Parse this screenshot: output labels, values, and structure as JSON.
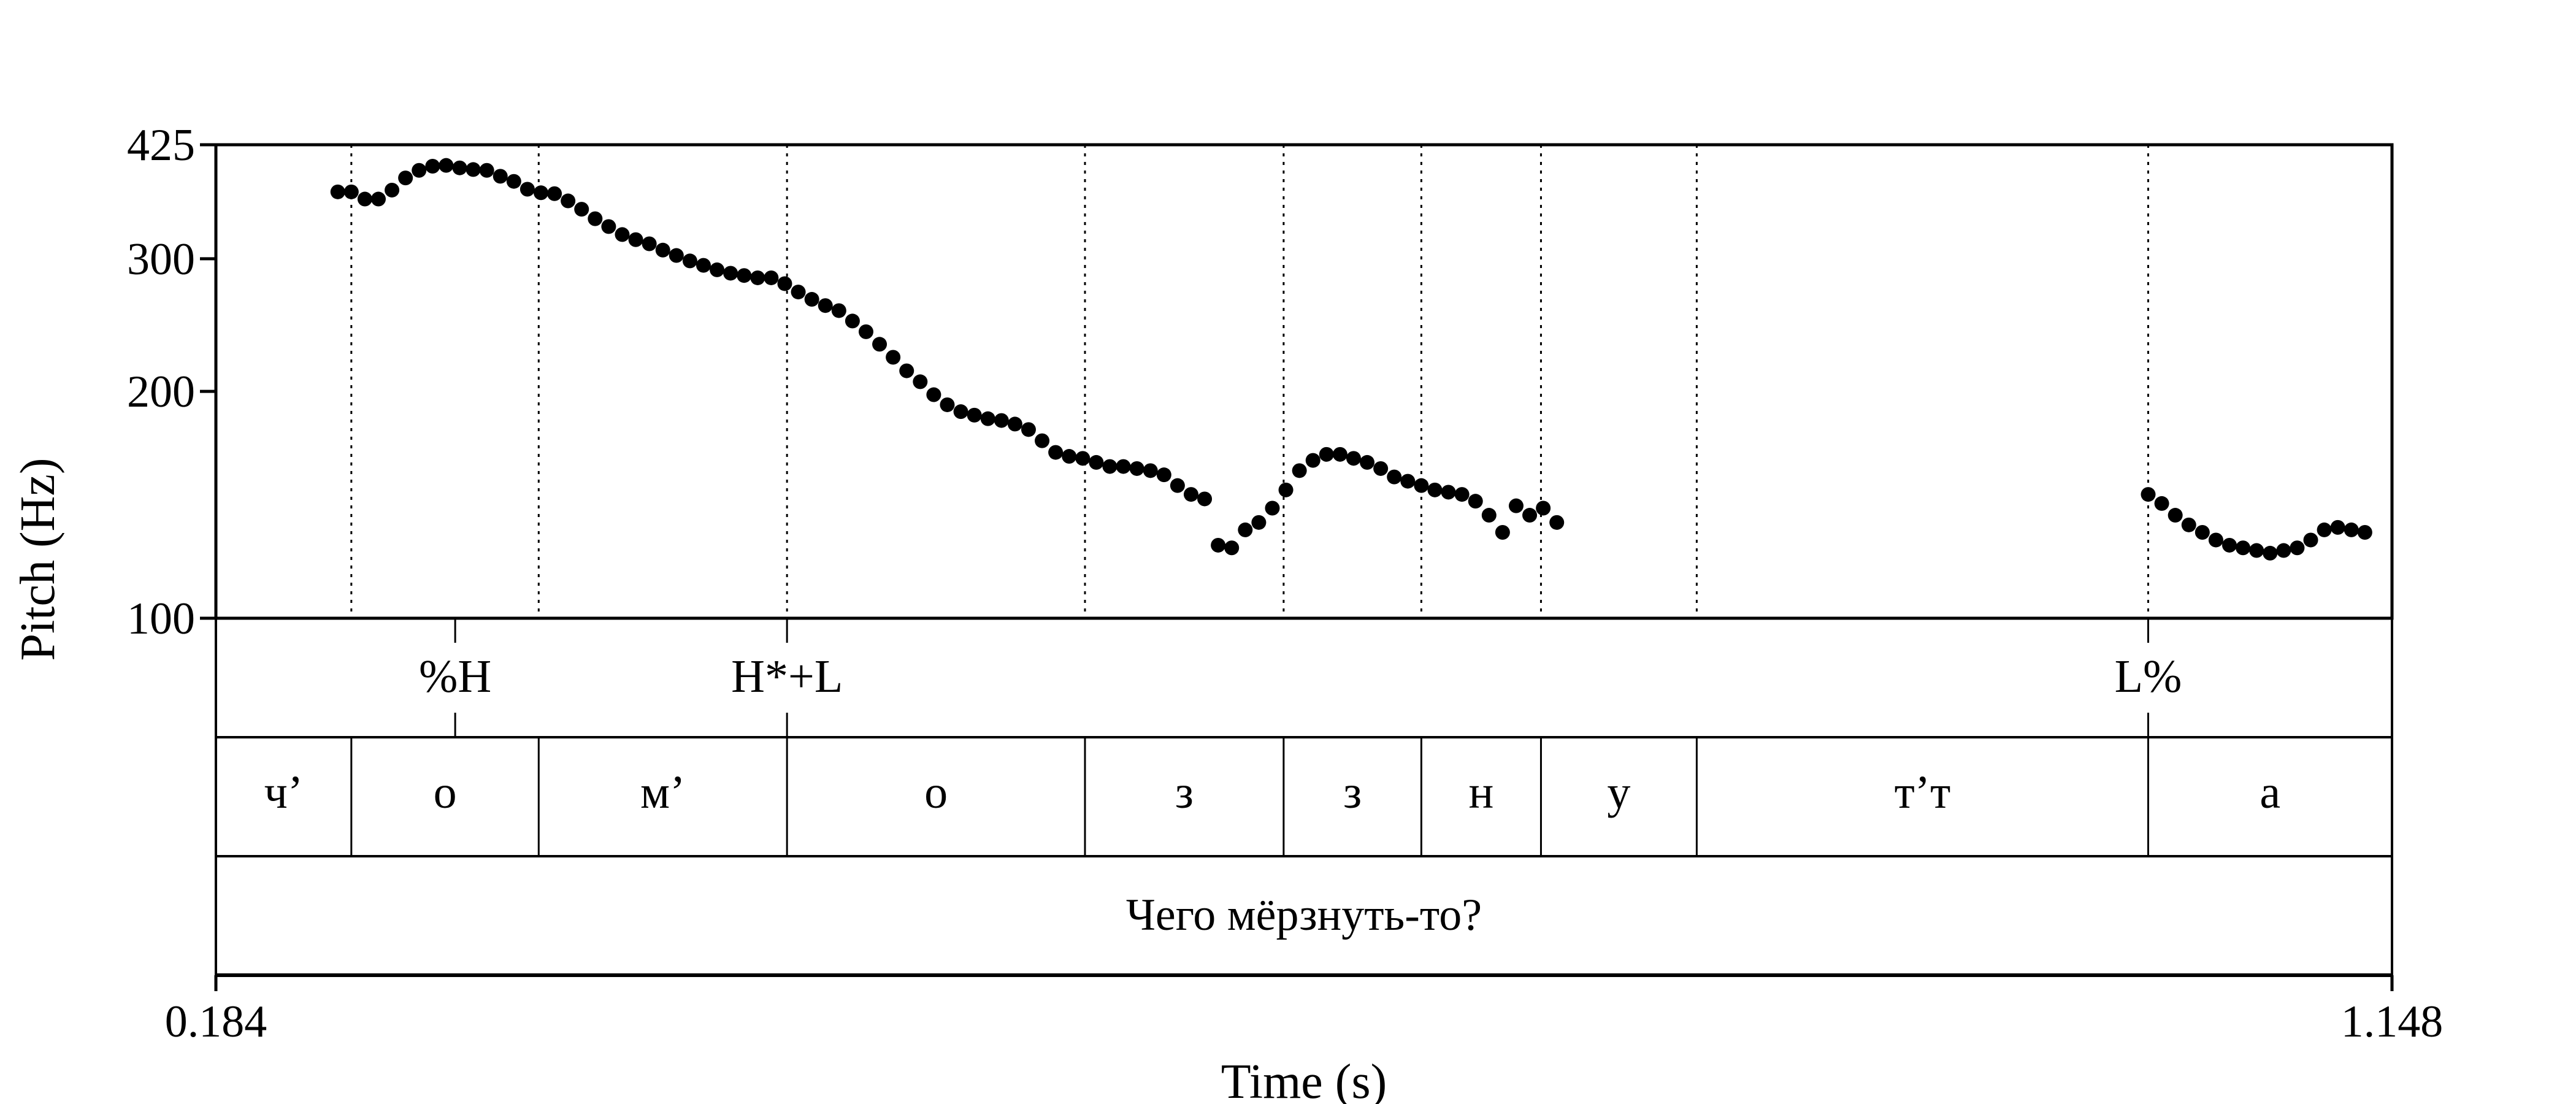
{
  "chart_data": {
    "type": "scatter",
    "title": "",
    "xlabel": "Time (s)",
    "ylabel": "Pitch (Hz)",
    "xlim": [
      0.184,
      1.148
    ],
    "ylim": [
      100,
      425
    ],
    "y_scale": "log",
    "x_tick_labels": [
      "0.184",
      "1.148"
    ],
    "y_tick_labels": [
      "100",
      "200",
      "300",
      "425"
    ],
    "y_ticks": [
      100,
      200,
      300,
      425
    ],
    "grid": false,
    "boundaries_s": [
      0.244,
      0.327,
      0.437,
      0.569,
      0.657,
      0.718,
      0.771,
      0.84,
      1.04
    ],
    "tone_marks": [
      {
        "label": "%H",
        "time": 0.29
      },
      {
        "label": "H*+L",
        "time": 0.437
      },
      {
        "label": "L%",
        "time": 1.04
      }
    ],
    "segments": [
      {
        "label": "ч’",
        "start": 0.184,
        "end": 0.244
      },
      {
        "label": "о",
        "start": 0.244,
        "end": 0.327
      },
      {
        "label": "м’",
        "start": 0.327,
        "end": 0.437
      },
      {
        "label": "о",
        "start": 0.437,
        "end": 0.569
      },
      {
        "label": "з",
        "start": 0.569,
        "end": 0.657
      },
      {
        "label": "з",
        "start": 0.657,
        "end": 0.718
      },
      {
        "label": "н",
        "start": 0.718,
        "end": 0.771
      },
      {
        "label": "у",
        "start": 0.771,
        "end": 0.84
      },
      {
        "label": "т’т",
        "start": 0.84,
        "end": 1.04
      },
      {
        "label": "а",
        "start": 1.04,
        "end": 1.148
      }
    ],
    "sentence": "Чего мёрзнуть-то?",
    "series": [
      {
        "values": [
          [
            0.238,
            368
          ],
          [
            0.244,
            368
          ],
          [
            0.25,
            360
          ],
          [
            0.256,
            360
          ],
          [
            0.262,
            370
          ],
          [
            0.268,
            384
          ],
          [
            0.274,
            393
          ],
          [
            0.28,
            398
          ],
          [
            0.286,
            399
          ],
          [
            0.292,
            396
          ],
          [
            0.298,
            394
          ],
          [
            0.304,
            393
          ],
          [
            0.31,
            386
          ],
          [
            0.316,
            380
          ],
          [
            0.322,
            371
          ],
          [
            0.328,
            367
          ],
          [
            0.334,
            366
          ],
          [
            0.34,
            358
          ],
          [
            0.346,
            349
          ],
          [
            0.352,
            339
          ],
          [
            0.358,
            331
          ],
          [
            0.364,
            323
          ],
          [
            0.37,
            318
          ],
          [
            0.376,
            314
          ],
          [
            0.382,
            308
          ],
          [
            0.388,
            303
          ],
          [
            0.394,
            298
          ],
          [
            0.4,
            294
          ],
          [
            0.406,
            290
          ],
          [
            0.412,
            287
          ],
          [
            0.418,
            285
          ],
          [
            0.424,
            283
          ],
          [
            0.43,
            283
          ],
          [
            0.436,
            278
          ],
          [
            0.442,
            271
          ],
          [
            0.448,
            265
          ],
          [
            0.454,
            260
          ],
          [
            0.46,
            256
          ],
          [
            0.466,
            248
          ],
          [
            0.472,
            240
          ],
          [
            0.478,
            231
          ],
          [
            0.484,
            222
          ],
          [
            0.49,
            213
          ],
          [
            0.496,
            206
          ],
          [
            0.502,
            198
          ],
          [
            0.508,
            192
          ],
          [
            0.514,
            188
          ],
          [
            0.52,
            186
          ],
          [
            0.526,
            184
          ],
          [
            0.532,
            183
          ],
          [
            0.538,
            181
          ],
          [
            0.544,
            178
          ],
          [
            0.55,
            172
          ],
          [
            0.556,
            166
          ],
          [
            0.562,
            164
          ],
          [
            0.568,
            163
          ],
          [
            0.574,
            161
          ],
          [
            0.58,
            159
          ],
          [
            0.586,
            159
          ],
          [
            0.592,
            158
          ],
          [
            0.598,
            157
          ],
          [
            0.604,
            155
          ],
          [
            0.61,
            150
          ],
          [
            0.616,
            146
          ],
          [
            0.622,
            144
          ],
          [
            0.628,
            125
          ],
          [
            0.634,
            124
          ],
          [
            0.64,
            131
          ],
          [
            0.646,
            134
          ],
          [
            0.652,
            140
          ],
          [
            0.658,
            148
          ],
          [
            0.664,
            157
          ],
          [
            0.67,
            162
          ],
          [
            0.676,
            165
          ],
          [
            0.682,
            165
          ],
          [
            0.688,
            163
          ],
          [
            0.694,
            161
          ],
          [
            0.7,
            158
          ],
          [
            0.706,
            154
          ],
          [
            0.712,
            152
          ],
          [
            0.718,
            150
          ],
          [
            0.724,
            148
          ],
          [
            0.73,
            147
          ],
          [
            0.736,
            146
          ],
          [
            0.742,
            143
          ],
          [
            0.748,
            137
          ],
          [
            0.754,
            130
          ],
          [
            0.76,
            141
          ],
          [
            0.766,
            137
          ],
          [
            0.772,
            140
          ],
          [
            0.778,
            134
          ],
          [
            1.04,
            146
          ],
          [
            1.046,
            142
          ],
          [
            1.052,
            137
          ],
          [
            1.058,
            133
          ],
          [
            1.064,
            130
          ],
          [
            1.07,
            127
          ],
          [
            1.076,
            125
          ],
          [
            1.082,
            124
          ],
          [
            1.088,
            123
          ],
          [
            1.094,
            122
          ],
          [
            1.1,
            123
          ],
          [
            1.106,
            124
          ],
          [
            1.112,
            127
          ],
          [
            1.118,
            131
          ],
          [
            1.124,
            132
          ],
          [
            1.13,
            131
          ],
          [
            1.136,
            130
          ]
        ]
      }
    ]
  }
}
